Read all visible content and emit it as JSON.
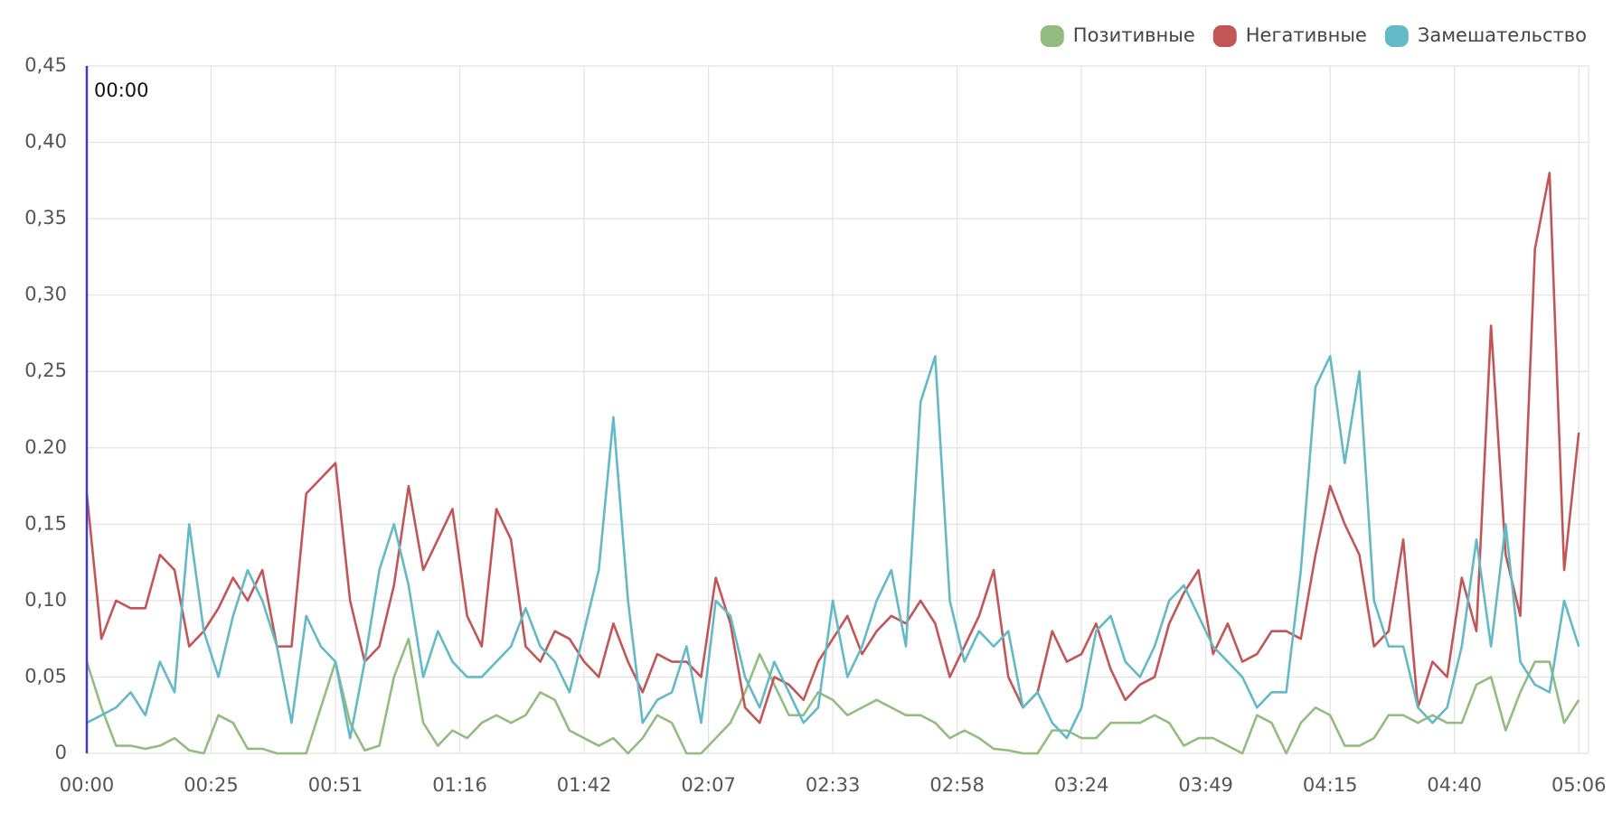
{
  "chart_data": {
    "type": "line",
    "cursor_x": 0,
    "cursor_label": "00:00",
    "cursor_color": "#3b3bcc",
    "grid": true,
    "legend": "top-right",
    "xlim": [
      0,
      308
    ],
    "xticks": [
      {
        "value": 0,
        "label": "00:00"
      },
      {
        "value": 25.5,
        "label": "00:25"
      },
      {
        "value": 51,
        "label": "00:51"
      },
      {
        "value": 76.5,
        "label": "01:16"
      },
      {
        "value": 102,
        "label": "01:42"
      },
      {
        "value": 127.5,
        "label": "02:07"
      },
      {
        "value": 153,
        "label": "02:33"
      },
      {
        "value": 178.5,
        "label": "02:58"
      },
      {
        "value": 204,
        "label": "03:24"
      },
      {
        "value": 229.5,
        "label": "03:49"
      },
      {
        "value": 255,
        "label": "04:15"
      },
      {
        "value": 280.5,
        "label": "04:40"
      },
      {
        "value": 306,
        "label": "05:06"
      }
    ],
    "ylim": [
      0,
      0.45
    ],
    "yticks": [
      0,
      {
        "value": 0.05,
        "label": "0,05"
      },
      {
        "value": 0.1,
        "label": "0,10"
      },
      {
        "value": 0.15,
        "label": "0,15"
      },
      {
        "value": 0.2,
        "label": "0.20"
      },
      {
        "value": 0.25,
        "label": "0,25"
      },
      {
        "value": 0.3,
        "label": "0,30"
      },
      {
        "value": 0.35,
        "label": "0,35"
      },
      {
        "value": 0.4,
        "label": "0,40"
      },
      {
        "value": 0.45,
        "label": "0,45"
      }
    ],
    "x": [
      0,
      3,
      6,
      9,
      12,
      15,
      18,
      21,
      24,
      27,
      30,
      33,
      36,
      39,
      42,
      45,
      48,
      51,
      54,
      57,
      60,
      63,
      66,
      69,
      72,
      75,
      78,
      81,
      84,
      87,
      90,
      93,
      96,
      99,
      102,
      105,
      108,
      111,
      114,
      117,
      120,
      123,
      126,
      129,
      132,
      135,
      138,
      141,
      144,
      147,
      150,
      153,
      156,
      159,
      162,
      165,
      168,
      171,
      174,
      177,
      180,
      183,
      186,
      189,
      192,
      195,
      198,
      201,
      204,
      207,
      210,
      213,
      216,
      219,
      222,
      225,
      228,
      231,
      234,
      237,
      240,
      243,
      246,
      249,
      252,
      255,
      258,
      261,
      264,
      267,
      270,
      273,
      276,
      279,
      282,
      285,
      288,
      291,
      294,
      297,
      300,
      303,
      306
    ],
    "series": [
      {
        "name": "Позитивные",
        "color": "#93bd80",
        "values": [
          0.06,
          0.03,
          0.005,
          0.005,
          0.003,
          0.005,
          0.01,
          0.002,
          0,
          0.025,
          0.02,
          0.003,
          0.003,
          0,
          0,
          0,
          0.03,
          0.06,
          0.02,
          0.002,
          0.005,
          0.05,
          0.075,
          0.02,
          0.005,
          0.015,
          0.01,
          0.02,
          0.025,
          0.02,
          0.025,
          0.04,
          0.035,
          0.015,
          0.01,
          0.005,
          0.01,
          0,
          0.01,
          0.025,
          0.02,
          0,
          0,
          0.01,
          0.02,
          0.04,
          0.065,
          0.045,
          0.025,
          0.025,
          0.04,
          0.035,
          0.025,
          0.03,
          0.035,
          0.03,
          0.025,
          0.025,
          0.02,
          0.01,
          0.015,
          0.01,
          0.003,
          0.002,
          0,
          0,
          0.015,
          0.015,
          0.01,
          0.01,
          0.02,
          0.02,
          0.02,
          0.025,
          0.02,
          0.005,
          0.01,
          0.01,
          0.005,
          0,
          0.025,
          0.02,
          0,
          0.02,
          0.03,
          0.025,
          0.005,
          0.005,
          0.01,
          0.025,
          0.025,
          0.02,
          0.025,
          0.02,
          0.02,
          0.045,
          0.05,
          0.015,
          0.04,
          0.06,
          0.06,
          0.02,
          0.035
        ]
      },
      {
        "name": "Негативные",
        "color": "#c25656",
        "values": [
          0.17,
          0.075,
          0.1,
          0.095,
          0.095,
          0.13,
          0.12,
          0.07,
          0.08,
          0.095,
          0.115,
          0.1,
          0.12,
          0.07,
          0.07,
          0.17,
          0.18,
          0.19,
          0.1,
          0.06,
          0.07,
          0.11,
          0.175,
          0.12,
          0.14,
          0.16,
          0.09,
          0.07,
          0.16,
          0.14,
          0.07,
          0.06,
          0.08,
          0.075,
          0.06,
          0.05,
          0.085,
          0.06,
          0.04,
          0.065,
          0.06,
          0.06,
          0.05,
          0.115,
          0.085,
          0.03,
          0.02,
          0.05,
          0.045,
          0.035,
          0.06,
          0.075,
          0.09,
          0.065,
          0.08,
          0.09,
          0.085,
          0.1,
          0.085,
          0.05,
          0.07,
          0.09,
          0.12,
          0.05,
          0.03,
          0.04,
          0.08,
          0.06,
          0.065,
          0.085,
          0.055,
          0.035,
          0.045,
          0.05,
          0.085,
          0.105,
          0.12,
          0.065,
          0.085,
          0.06,
          0.065,
          0.08,
          0.08,
          0.075,
          0.13,
          0.175,
          0.15,
          0.13,
          0.07,
          0.08,
          0.14,
          0.03,
          0.06,
          0.05,
          0.115,
          0.08,
          0.28,
          0.13,
          0.09,
          0.33,
          0.38,
          0.12,
          0.21
        ]
      },
      {
        "name": "Замешательство",
        "color": "#63b9c6",
        "values": [
          0.02,
          0.025,
          0.03,
          0.04,
          0.025,
          0.06,
          0.04,
          0.15,
          0.08,
          0.05,
          0.09,
          0.12,
          0.1,
          0.07,
          0.02,
          0.09,
          0.07,
          0.06,
          0.01,
          0.06,
          0.12,
          0.15,
          0.11,
          0.05,
          0.08,
          0.06,
          0.05,
          0.05,
          0.06,
          0.07,
          0.095,
          0.07,
          0.06,
          0.04,
          0.08,
          0.12,
          0.22,
          0.1,
          0.02,
          0.035,
          0.04,
          0.07,
          0.02,
          0.1,
          0.09,
          0.05,
          0.03,
          0.06,
          0.04,
          0.02,
          0.03,
          0.1,
          0.05,
          0.07,
          0.1,
          0.12,
          0.07,
          0.23,
          0.26,
          0.1,
          0.06,
          0.08,
          0.07,
          0.08,
          0.03,
          0.04,
          0.02,
          0.01,
          0.03,
          0.08,
          0.09,
          0.06,
          0.05,
          0.07,
          0.1,
          0.11,
          0.09,
          0.07,
          0.06,
          0.05,
          0.03,
          0.04,
          0.04,
          0.12,
          0.24,
          0.26,
          0.19,
          0.25,
          0.1,
          0.07,
          0.07,
          0.03,
          0.02,
          0.03,
          0.07,
          0.14,
          0.07,
          0.15,
          0.06,
          0.045,
          0.04,
          0.1,
          0.07
        ]
      }
    ]
  }
}
